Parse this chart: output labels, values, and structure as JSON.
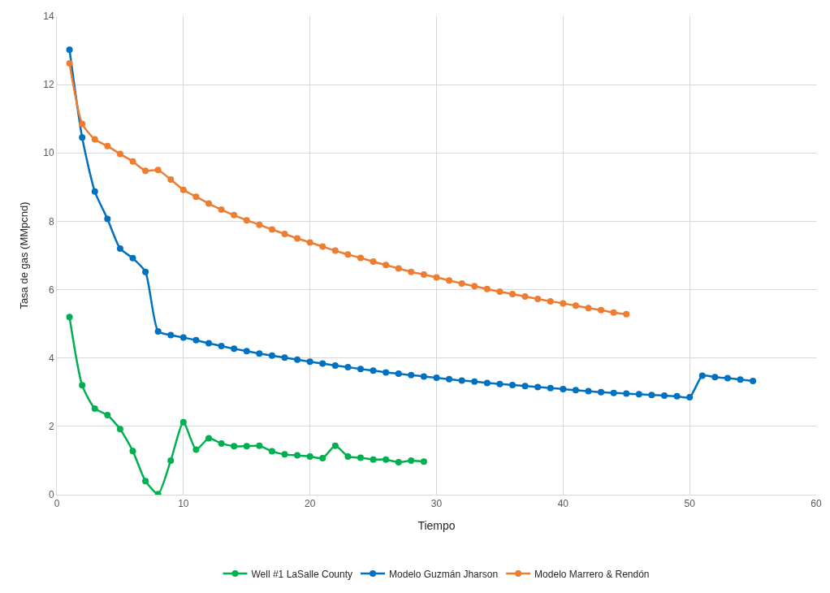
{
  "chart_data": {
    "type": "line",
    "xlabel": "Tiempo",
    "ylabel": "Tasa de gas (MMpcnd)",
    "xlim": [
      0,
      60
    ],
    "xticks": [
      0,
      10,
      20,
      30,
      40,
      50,
      60
    ],
    "ylim": [
      0,
      14
    ],
    "yticks": [
      0,
      2,
      4,
      6,
      8,
      10,
      12,
      14
    ],
    "grid": true,
    "legend": "bottom",
    "marker": "circle",
    "line_style": "solid",
    "series": [
      {
        "name": "Well #1 LaSalle County",
        "color": "#00b050",
        "x": [
          1,
          2,
          3,
          4,
          5,
          6,
          7,
          8,
          9,
          10,
          11,
          12,
          13,
          14,
          15,
          16,
          17,
          18,
          19,
          20,
          21,
          22,
          23,
          24,
          25,
          26,
          27,
          28,
          29
        ],
        "values": [
          5.2,
          3.2,
          2.52,
          2.33,
          1.92,
          1.28,
          0.4,
          0.02,
          1.0,
          2.12,
          1.32,
          1.65,
          1.5,
          1.42,
          1.42,
          1.43,
          1.27,
          1.18,
          1.15,
          1.12,
          1.07,
          1.43,
          1.12,
          1.08,
          1.03,
          1.03,
          0.95,
          1.0,
          0.97
        ]
      },
      {
        "name": "Modelo Guzmán Jharson",
        "color": "#0070c0",
        "x": [
          1,
          2,
          3,
          4,
          5,
          6,
          7,
          8,
          9,
          10,
          11,
          12,
          13,
          14,
          15,
          16,
          17,
          18,
          19,
          20,
          21,
          22,
          23,
          24,
          25,
          26,
          27,
          28,
          29,
          30,
          31,
          32,
          33,
          34,
          35,
          36,
          37,
          38,
          39,
          40,
          41,
          42,
          43,
          44,
          45,
          46,
          47,
          48,
          49,
          50,
          51,
          52,
          53,
          54,
          55
        ],
        "values": [
          13.02,
          10.45,
          8.87,
          8.07,
          7.2,
          6.92,
          6.52,
          4.78,
          4.67,
          4.6,
          4.52,
          4.43,
          4.35,
          4.27,
          4.2,
          4.13,
          4.07,
          4.01,
          3.95,
          3.89,
          3.84,
          3.78,
          3.73,
          3.68,
          3.63,
          3.58,
          3.54,
          3.5,
          3.46,
          3.42,
          3.38,
          3.34,
          3.31,
          3.27,
          3.24,
          3.21,
          3.18,
          3.15,
          3.12,
          3.09,
          3.06,
          3.03,
          3.0,
          2.98,
          2.96,
          2.94,
          2.92,
          2.9,
          2.88,
          2.85,
          3.48,
          3.44,
          3.41,
          3.37,
          3.33
        ]
      },
      {
        "name": "Modelo Marrero & Rendón",
        "color": "#ed7d31",
        "x": [
          1,
          2,
          3,
          4,
          5,
          6,
          7,
          8,
          9,
          10,
          11,
          12,
          13,
          14,
          15,
          16,
          17,
          18,
          19,
          20,
          21,
          22,
          23,
          24,
          25,
          26,
          27,
          28,
          29,
          30,
          31,
          32,
          33,
          34,
          35,
          36,
          37,
          38,
          39,
          40,
          41,
          42,
          43,
          44,
          45
        ],
        "values": [
          12.62,
          10.85,
          10.4,
          10.2,
          9.97,
          9.75,
          9.48,
          9.5,
          9.22,
          8.92,
          8.72,
          8.52,
          8.34,
          8.18,
          8.03,
          7.9,
          7.76,
          7.63,
          7.5,
          7.38,
          7.26,
          7.14,
          7.03,
          6.93,
          6.82,
          6.72,
          6.62,
          6.52,
          6.44,
          6.36,
          6.27,
          6.18,
          6.1,
          6.02,
          5.94,
          5.87,
          5.8,
          5.73,
          5.66,
          5.6,
          5.53,
          5.46,
          5.4,
          5.33,
          5.28
        ]
      }
    ]
  }
}
